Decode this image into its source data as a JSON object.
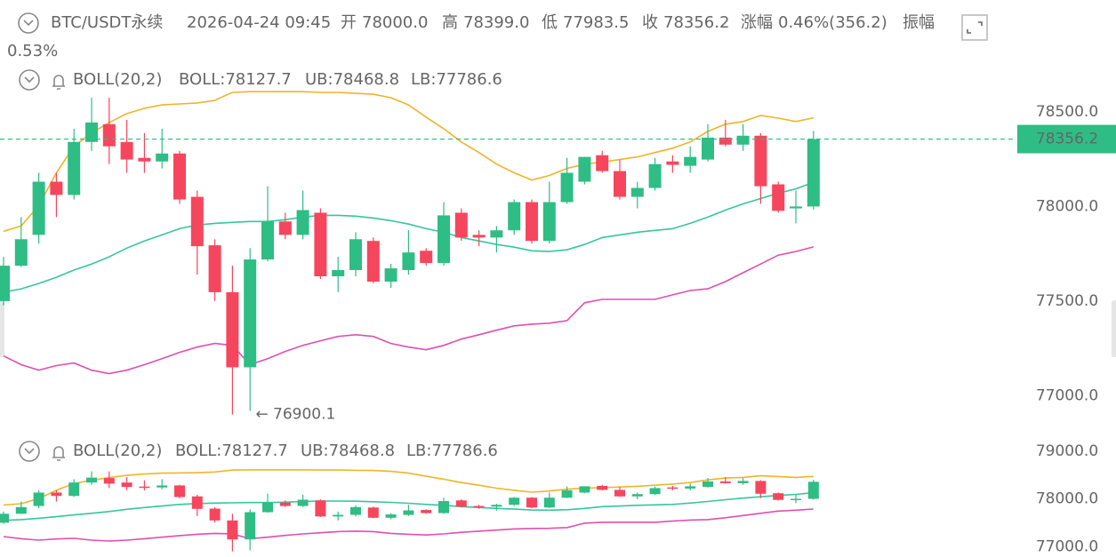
{
  "header": {
    "symbol": "BTC/USDT永续",
    "time": "2026-04-24 09:45",
    "fields": [
      {
        "name": "开",
        "value": "78000.0"
      },
      {
        "name": "高",
        "value": "78399.0"
      },
      {
        "name": "低",
        "value": "77983.5"
      },
      {
        "name": "收",
        "value": "78356.2"
      },
      {
        "name": "涨幅",
        "value": "0.46%(356.2)"
      },
      {
        "name": "振幅",
        "value": "0.53%"
      }
    ]
  },
  "chart_data": [
    {
      "type": "candlestick",
      "indicator": "BOLL(20,2)",
      "up_color": "#2ebd85",
      "down_color": "#f6465d",
      "open": [
        77500,
        77687,
        77850,
        78131,
        78061,
        78341,
        78435,
        78341,
        78257,
        78238,
        78280,
        78051,
        77795,
        77547,
        77150,
        77720,
        77921,
        77850,
        77967,
        77631,
        77664,
        77818,
        77603,
        77664,
        77766,
        77701,
        77967,
        77850,
        77836,
        77874,
        78023,
        77818,
        78023,
        78131,
        78271,
        78187,
        78051,
        78098,
        78238,
        78215,
        78248,
        78364,
        78327,
        78374,
        78117,
        77990,
        78000
      ],
      "high": [
        77734,
        77944,
        78178,
        78178,
        78411,
        78575,
        78575,
        78458,
        78388,
        78411,
        78294,
        78084,
        77827,
        77687,
        77780,
        78107,
        77967,
        78084,
        77990,
        77734,
        77864,
        77836,
        77697,
        77874,
        77780,
        78023,
        77990,
        77874,
        77897,
        78037,
        78037,
        78131,
        78257,
        78262,
        78294,
        78248,
        78131,
        78257,
        78271,
        78318,
        78435,
        78458,
        78435,
        78388,
        78131,
        78084,
        78399
      ],
      "low": [
        77477,
        77680,
        77804,
        77944,
        78037,
        78294,
        78224,
        78178,
        78178,
        78201,
        78014,
        77640,
        77500,
        76900.1,
        76920,
        77710,
        77827,
        77827,
        77617,
        77547,
        77631,
        77594,
        77570,
        77640,
        77687,
        77687,
        77818,
        77790,
        77757,
        77850,
        77804,
        77804,
        78014,
        78117,
        78178,
        78037,
        77990,
        78084,
        78178,
        78178,
        78238,
        78318,
        78294,
        78014,
        77967,
        77911,
        77983.5
      ],
      "close": [
        77687,
        77827,
        78131,
        78061,
        78341,
        78444,
        78318,
        78248,
        78238,
        78280,
        78037,
        77790,
        77547,
        77150,
        77720,
        77921,
        77850,
        77981,
        77631,
        77664,
        77827,
        77603,
        77673,
        77757,
        77701,
        77953,
        77836,
        77836,
        77874,
        78023,
        77818,
        78023,
        78178,
        78262,
        78187,
        78051,
        78098,
        78224,
        78220,
        78262,
        78364,
        78327,
        78374,
        78107,
        77977,
        78000,
        78356.2
      ],
      "series": [
        {
          "name": "BOLL:78127.7",
          "color": "#34c79c",
          "values": [
            77547,
            77565,
            77593,
            77626,
            77664,
            77696,
            77734,
            77780,
            77818,
            77850,
            77883,
            77902,
            77911,
            77916,
            77921,
            77921,
            77930,
            77944,
            77953,
            77953,
            77949,
            77939,
            77925,
            77907,
            77883,
            77864,
            77836,
            77818,
            77799,
            77785,
            77766,
            77762,
            77771,
            77799,
            77836,
            77850,
            77864,
            77874,
            77883,
            77911,
            77944,
            77981,
            78014,
            78042,
            78070,
            78093,
            78127.7
          ]
        },
        {
          "name": "UB:78468.8",
          "color": "#f0b429",
          "values": [
            77869,
            77897,
            78005,
            78178,
            78318,
            78388,
            78444,
            78491,
            78519,
            78537,
            78542,
            78547,
            78561,
            78603,
            78607,
            78607,
            78607,
            78607,
            78603,
            78603,
            78598,
            78593,
            78575,
            78537,
            78472,
            78411,
            78341,
            78285,
            78224,
            78178,
            78140,
            78164,
            78201,
            78224,
            78234,
            78248,
            78262,
            78285,
            78308,
            78341,
            78397,
            78435,
            78449,
            78481,
            78467,
            78449,
            78468.8
          ]
        },
        {
          "name": "LB:77786.6",
          "color": "#e04fae",
          "values": [
            77210,
            77164,
            77135,
            77159,
            77173,
            77135,
            77117,
            77135,
            77164,
            77196,
            77229,
            77257,
            77276,
            77266,
            77164,
            77196,
            77234,
            77266,
            77290,
            77313,
            77322,
            77313,
            77276,
            77257,
            77243,
            77266,
            77299,
            77322,
            77346,
            77369,
            77378,
            77383,
            77397,
            77491,
            77509,
            77509,
            77509,
            77509,
            77533,
            77556,
            77565,
            77603,
            77650,
            77696,
            77743,
            77762,
            77786.6
          ]
        }
      ],
      "last_price": 78356.2,
      "low_annotation": "← 76900.1",
      "ylim": [
        76800,
        78650
      ],
      "yticks": [
        {
          "value": 78500,
          "label": "78500.0"
        },
        {
          "value": 78000,
          "label": "78000.0"
        },
        {
          "value": 77500,
          "label": "77500.0"
        },
        {
          "value": 77000,
          "label": "77000.0"
        }
      ]
    },
    {
      "type": "candlestick_overview",
      "indicator": "BOLL(20,2)",
      "legend": [
        "BOLL:78127.7",
        "UB:78468.8",
        "LB:77786.6"
      ],
      "ylim": [
        76800,
        79200
      ],
      "yticks": [
        {
          "value": 79000,
          "label": "79000.0"
        },
        {
          "value": 78000,
          "label": "78000.0"
        },
        {
          "value": 77000,
          "label": "77000.0"
        }
      ]
    }
  ]
}
